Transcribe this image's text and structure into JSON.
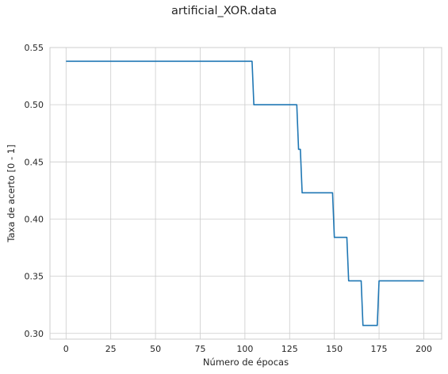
{
  "chart_data": {
    "type": "line",
    "title": "artificial_XOR.data",
    "xlabel": "Número de épocas",
    "ylabel": "Taxa de acerto [0 - 1]",
    "xlim": [
      -9,
      210
    ],
    "ylim": [
      0.295,
      0.55
    ],
    "x_ticks": [
      0,
      25,
      50,
      75,
      100,
      125,
      150,
      175,
      200
    ],
    "x_tick_labels": [
      "0",
      "25",
      "50",
      "75",
      "100",
      "125",
      "150",
      "175",
      "200"
    ],
    "y_ticks": [
      0.3,
      0.35,
      0.4,
      0.45,
      0.5,
      0.55
    ],
    "y_tick_labels": [
      "0.30",
      "0.35",
      "0.40",
      "0.45",
      "0.50",
      "0.55"
    ],
    "grid": true,
    "colors": {
      "line": "#1f77b4",
      "grid": "#cccccc",
      "frame": "#cccccc"
    },
    "series": [
      {
        "x": [
          0,
          104,
          105,
          128,
          129,
          130,
          131,
          132,
          149,
          150,
          157,
          158,
          165,
          166,
          174,
          175,
          200
        ],
        "y": [
          0.538,
          0.538,
          0.5,
          0.5,
          0.5,
          0.461,
          0.461,
          0.423,
          0.423,
          0.384,
          0.384,
          0.346,
          0.346,
          0.307,
          0.307,
          0.346,
          0.346
        ]
      }
    ]
  }
}
